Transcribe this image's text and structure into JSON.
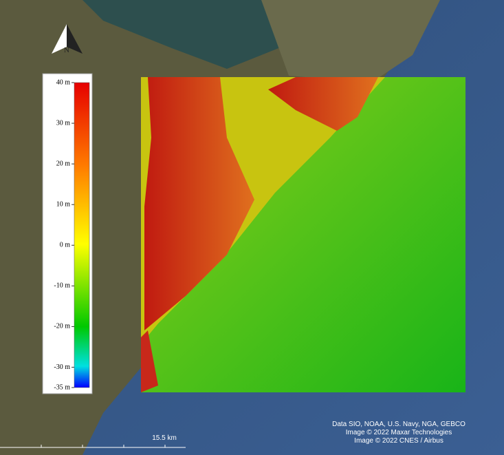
{
  "compass": {
    "label": "N"
  },
  "legend": {
    "ticks": [
      {
        "value": 40,
        "label": "40 m"
      },
      {
        "value": 30,
        "label": "30 m"
      },
      {
        "value": 20,
        "label": "20 m"
      },
      {
        "value": 10,
        "label": "10 m"
      },
      {
        "value": 0,
        "label": "0 m"
      },
      {
        "value": -10,
        "label": "-10 m"
      },
      {
        "value": -20,
        "label": "-20 m"
      },
      {
        "value": -30,
        "label": "-30 m"
      },
      {
        "value": -35,
        "label": "-35 m"
      }
    ]
  },
  "scale_bar": {
    "label": "15.5 km"
  },
  "attribution": [
    "Data SIO, NOAA, U.S. Navy, NGA, GEBCO",
    "Image © 2022 Maxar Technologies",
    "Image © 2022 CNES / Airbus"
  ]
}
